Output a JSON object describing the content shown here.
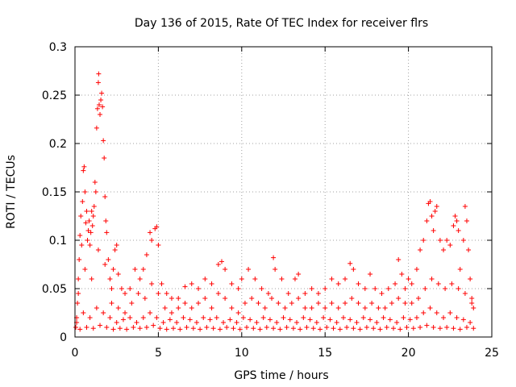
{
  "chart_data": {
    "type": "scatter",
    "title": "Day 136 of 2015, Rate Of TEC Index for receiver flrs",
    "xlabel": "GPS time / hours",
    "ylabel": "ROTI / TECUs",
    "xlim": [
      0,
      25
    ],
    "ylim": [
      0,
      0.3
    ],
    "xticks": [
      0,
      5,
      10,
      15,
      20,
      25
    ],
    "xtick_labels": [
      "0",
      "5",
      "10",
      "15",
      "20",
      "25"
    ],
    "yticks": [
      0,
      0.05,
      0.1,
      0.15,
      0.2,
      0.25,
      0.3
    ],
    "ytick_labels": [
      "0",
      "0.05",
      "0.1",
      "0.15",
      "0.2",
      "0.25",
      "0.3"
    ],
    "grid": true,
    "marker": "+",
    "color": "#ff0000",
    "series": [
      {
        "name": "ROTI",
        "points": [
          [
            0.05,
            0.01
          ],
          [
            0.1,
            0.02
          ],
          [
            0.15,
            0.035
          ],
          [
            0.2,
            0.06
          ],
          [
            0.25,
            0.08
          ],
          [
            0.3,
            0.105
          ],
          [
            0.35,
            0.125
          ],
          [
            0.4,
            0.095
          ],
          [
            0.45,
            0.14
          ],
          [
            0.5,
            0.172
          ],
          [
            0.55,
            0.176
          ],
          [
            0.6,
            0.15
          ],
          [
            0.65,
            0.118
          ],
          [
            0.7,
            0.13
          ],
          [
            0.75,
            0.1
          ],
          [
            0.8,
            0.11
          ],
          [
            0.85,
            0.12
          ],
          [
            0.9,
            0.095
          ],
          [
            0.95,
            0.108
          ],
          [
            1.0,
            0.13
          ],
          [
            1.05,
            0.115
          ],
          [
            1.1,
            0.125
          ],
          [
            1.15,
            0.135
          ],
          [
            1.2,
            0.16
          ],
          [
            1.25,
            0.15
          ],
          [
            1.3,
            0.216
          ],
          [
            1.35,
            0.236
          ],
          [
            1.4,
            0.263
          ],
          [
            1.42,
            0.272
          ],
          [
            1.45,
            0.24
          ],
          [
            1.5,
            0.23
          ],
          [
            1.55,
            0.245
          ],
          [
            1.6,
            0.252
          ],
          [
            1.65,
            0.238
          ],
          [
            1.7,
            0.203
          ],
          [
            1.75,
            0.185
          ],
          [
            1.8,
            0.145
          ],
          [
            1.85,
            0.12
          ],
          [
            1.9,
            0.108
          ],
          [
            2.0,
            0.08
          ],
          [
            2.1,
            0.06
          ],
          [
            2.2,
            0.05
          ],
          [
            2.3,
            0.07
          ],
          [
            2.4,
            0.09
          ],
          [
            2.5,
            0.095
          ],
          [
            2.6,
            0.065
          ],
          [
            2.8,
            0.05
          ],
          [
            3.0,
            0.045
          ],
          [
            3.3,
            0.05
          ],
          [
            3.6,
            0.07
          ],
          [
            3.9,
            0.06
          ],
          [
            4.1,
            0.07
          ],
          [
            4.3,
            0.085
          ],
          [
            4.5,
            0.108
          ],
          [
            4.6,
            0.1
          ],
          [
            4.8,
            0.112
          ],
          [
            4.9,
            0.114
          ],
          [
            5.0,
            0.095
          ],
          [
            5.2,
            0.055
          ],
          [
            5.5,
            0.045
          ],
          [
            5.8,
            0.04
          ],
          [
            6.2,
            0.04
          ],
          [
            6.6,
            0.052
          ],
          [
            7.0,
            0.055
          ],
          [
            7.4,
            0.05
          ],
          [
            7.8,
            0.06
          ],
          [
            8.2,
            0.055
          ],
          [
            8.6,
            0.075
          ],
          [
            8.8,
            0.078
          ],
          [
            9.0,
            0.07
          ],
          [
            9.4,
            0.055
          ],
          [
            9.8,
            0.05
          ],
          [
            10.0,
            0.06
          ],
          [
            10.4,
            0.07
          ],
          [
            10.8,
            0.06
          ],
          [
            11.2,
            0.05
          ],
          [
            11.6,
            0.045
          ],
          [
            11.9,
            0.082
          ],
          [
            12.0,
            0.07
          ],
          [
            12.4,
            0.06
          ],
          [
            12.8,
            0.045
          ],
          [
            13.2,
            0.06
          ],
          [
            13.4,
            0.065
          ],
          [
            13.8,
            0.045
          ],
          [
            14.2,
            0.05
          ],
          [
            14.6,
            0.045
          ],
          [
            15.0,
            0.05
          ],
          [
            15.4,
            0.06
          ],
          [
            15.8,
            0.055
          ],
          [
            16.2,
            0.06
          ],
          [
            16.5,
            0.076
          ],
          [
            16.7,
            0.07
          ],
          [
            17.0,
            0.055
          ],
          [
            17.4,
            0.05
          ],
          [
            17.7,
            0.065
          ],
          [
            18.0,
            0.05
          ],
          [
            18.4,
            0.045
          ],
          [
            18.8,
            0.05
          ],
          [
            19.2,
            0.055
          ],
          [
            19.4,
            0.08
          ],
          [
            19.6,
            0.065
          ],
          [
            19.8,
            0.05
          ],
          [
            20.0,
            0.06
          ],
          [
            20.2,
            0.055
          ],
          [
            20.5,
            0.07
          ],
          [
            20.7,
            0.09
          ],
          [
            20.9,
            0.1
          ],
          [
            21.1,
            0.12
          ],
          [
            21.2,
            0.138
          ],
          [
            21.3,
            0.14
          ],
          [
            21.4,
            0.125
          ],
          [
            21.5,
            0.11
          ],
          [
            21.6,
            0.13
          ],
          [
            21.7,
            0.135
          ],
          [
            21.9,
            0.1
          ],
          [
            22.1,
            0.09
          ],
          [
            22.3,
            0.1
          ],
          [
            22.5,
            0.095
          ],
          [
            22.7,
            0.115
          ],
          [
            22.8,
            0.125
          ],
          [
            22.9,
            0.12
          ],
          [
            23.0,
            0.11
          ],
          [
            23.1,
            0.07
          ],
          [
            23.3,
            0.1
          ],
          [
            23.4,
            0.135
          ],
          [
            23.5,
            0.12
          ],
          [
            23.6,
            0.09
          ],
          [
            23.7,
            0.06
          ],
          [
            23.8,
            0.04
          ],
          [
            23.9,
            0.03
          ],
          [
            0.2,
            0.045
          ],
          [
            0.6,
            0.07
          ],
          [
            1.0,
            0.06
          ],
          [
            1.4,
            0.09
          ],
          [
            1.8,
            0.075
          ],
          [
            2.2,
            0.035
          ],
          [
            2.6,
            0.03
          ],
          [
            3.0,
            0.025
          ],
          [
            3.4,
            0.035
          ],
          [
            3.8,
            0.045
          ],
          [
            4.2,
            0.04
          ],
          [
            4.6,
            0.055
          ],
          [
            5.0,
            0.045
          ],
          [
            5.4,
            0.03
          ],
          [
            5.8,
            0.025
          ],
          [
            6.2,
            0.03
          ],
          [
            6.6,
            0.035
          ],
          [
            7.0,
            0.03
          ],
          [
            7.4,
            0.035
          ],
          [
            7.8,
            0.04
          ],
          [
            8.2,
            0.03
          ],
          [
            8.6,
            0.045
          ],
          [
            9.0,
            0.04
          ],
          [
            9.4,
            0.03
          ],
          [
            9.8,
            0.025
          ],
          [
            10.2,
            0.035
          ],
          [
            10.6,
            0.04
          ],
          [
            11.0,
            0.035
          ],
          [
            11.4,
            0.03
          ],
          [
            11.8,
            0.04
          ],
          [
            12.2,
            0.035
          ],
          [
            12.6,
            0.03
          ],
          [
            13.0,
            0.035
          ],
          [
            13.4,
            0.04
          ],
          [
            13.8,
            0.03
          ],
          [
            14.2,
            0.03
          ],
          [
            14.6,
            0.035
          ],
          [
            15.0,
            0.03
          ],
          [
            15.4,
            0.035
          ],
          [
            15.8,
            0.03
          ],
          [
            16.2,
            0.035
          ],
          [
            16.6,
            0.04
          ],
          [
            17.0,
            0.035
          ],
          [
            17.4,
            0.03
          ],
          [
            17.8,
            0.035
          ],
          [
            18.2,
            0.03
          ],
          [
            18.6,
            0.03
          ],
          [
            19.0,
            0.035
          ],
          [
            19.4,
            0.04
          ],
          [
            19.8,
            0.035
          ],
          [
            20.2,
            0.035
          ],
          [
            20.6,
            0.04
          ],
          [
            21.0,
            0.05
          ],
          [
            21.4,
            0.06
          ],
          [
            21.8,
            0.055
          ],
          [
            22.2,
            0.05
          ],
          [
            22.6,
            0.055
          ],
          [
            23.0,
            0.05
          ],
          [
            23.4,
            0.045
          ],
          [
            23.8,
            0.035
          ],
          [
            0.1,
            0.015
          ],
          [
            0.5,
            0.025
          ],
          [
            0.9,
            0.02
          ],
          [
            1.3,
            0.03
          ],
          [
            1.7,
            0.025
          ],
          [
            2.1,
            0.02
          ],
          [
            2.5,
            0.015
          ],
          [
            2.9,
            0.018
          ],
          [
            3.3,
            0.02
          ],
          [
            3.7,
            0.015
          ],
          [
            4.1,
            0.02
          ],
          [
            4.5,
            0.025
          ],
          [
            4.9,
            0.02
          ],
          [
            5.3,
            0.015
          ],
          [
            5.7,
            0.018
          ],
          [
            6.1,
            0.015
          ],
          [
            6.5,
            0.02
          ],
          [
            6.9,
            0.018
          ],
          [
            7.3,
            0.015
          ],
          [
            7.7,
            0.02
          ],
          [
            8.1,
            0.018
          ],
          [
            8.5,
            0.02
          ],
          [
            8.9,
            0.015
          ],
          [
            9.3,
            0.018
          ],
          [
            9.7,
            0.015
          ],
          [
            10.1,
            0.02
          ],
          [
            10.5,
            0.018
          ],
          [
            10.9,
            0.015
          ],
          [
            11.3,
            0.02
          ],
          [
            11.7,
            0.018
          ],
          [
            12.1,
            0.015
          ],
          [
            12.5,
            0.02
          ],
          [
            12.9,
            0.018
          ],
          [
            13.3,
            0.015
          ],
          [
            13.7,
            0.02
          ],
          [
            14.1,
            0.018
          ],
          [
            14.5,
            0.015
          ],
          [
            14.9,
            0.02
          ],
          [
            15.3,
            0.018
          ],
          [
            15.7,
            0.015
          ],
          [
            16.1,
            0.02
          ],
          [
            16.5,
            0.018
          ],
          [
            16.9,
            0.015
          ],
          [
            17.3,
            0.02
          ],
          [
            17.7,
            0.018
          ],
          [
            18.1,
            0.015
          ],
          [
            18.5,
            0.02
          ],
          [
            18.9,
            0.018
          ],
          [
            19.3,
            0.015
          ],
          [
            19.7,
            0.02
          ],
          [
            20.1,
            0.018
          ],
          [
            20.5,
            0.02
          ],
          [
            20.9,
            0.025
          ],
          [
            21.3,
            0.03
          ],
          [
            21.7,
            0.025
          ],
          [
            22.1,
            0.02
          ],
          [
            22.5,
            0.025
          ],
          [
            22.9,
            0.02
          ],
          [
            23.3,
            0.018
          ],
          [
            23.7,
            0.015
          ],
          [
            0.3,
            0.008
          ],
          [
            0.7,
            0.01
          ],
          [
            1.1,
            0.009
          ],
          [
            1.5,
            0.012
          ],
          [
            1.9,
            0.01
          ],
          [
            2.3,
            0.008
          ],
          [
            2.7,
            0.009
          ],
          [
            3.1,
            0.008
          ],
          [
            3.5,
            0.01
          ],
          [
            3.9,
            0.009
          ],
          [
            4.3,
            0.01
          ],
          [
            4.7,
            0.012
          ],
          [
            5.1,
            0.009
          ],
          [
            5.5,
            0.008
          ],
          [
            5.9,
            0.009
          ],
          [
            6.3,
            0.008
          ],
          [
            6.7,
            0.01
          ],
          [
            7.1,
            0.009
          ],
          [
            7.5,
            0.008
          ],
          [
            7.9,
            0.01
          ],
          [
            8.3,
            0.009
          ],
          [
            8.7,
            0.008
          ],
          [
            9.1,
            0.01
          ],
          [
            9.5,
            0.009
          ],
          [
            9.9,
            0.008
          ],
          [
            10.3,
            0.01
          ],
          [
            10.7,
            0.009
          ],
          [
            11.1,
            0.008
          ],
          [
            11.5,
            0.01
          ],
          [
            11.9,
            0.009
          ],
          [
            12.3,
            0.008
          ],
          [
            12.7,
            0.01
          ],
          [
            13.1,
            0.009
          ],
          [
            13.5,
            0.008
          ],
          [
            13.9,
            0.01
          ],
          [
            14.3,
            0.009
          ],
          [
            14.7,
            0.008
          ],
          [
            15.1,
            0.01
          ],
          [
            15.5,
            0.009
          ],
          [
            15.9,
            0.008
          ],
          [
            16.3,
            0.01
          ],
          [
            16.7,
            0.009
          ],
          [
            17.1,
            0.008
          ],
          [
            17.5,
            0.01
          ],
          [
            17.9,
            0.009
          ],
          [
            18.3,
            0.008
          ],
          [
            18.7,
            0.01
          ],
          [
            19.1,
            0.009
          ],
          [
            19.5,
            0.008
          ],
          [
            19.9,
            0.01
          ],
          [
            20.3,
            0.009
          ],
          [
            20.7,
            0.01
          ],
          [
            21.1,
            0.012
          ],
          [
            21.5,
            0.01
          ],
          [
            21.9,
            0.009
          ],
          [
            22.3,
            0.01
          ],
          [
            22.7,
            0.009
          ],
          [
            23.1,
            0.008
          ],
          [
            23.5,
            0.01
          ],
          [
            23.9,
            0.009
          ]
        ]
      }
    ]
  }
}
